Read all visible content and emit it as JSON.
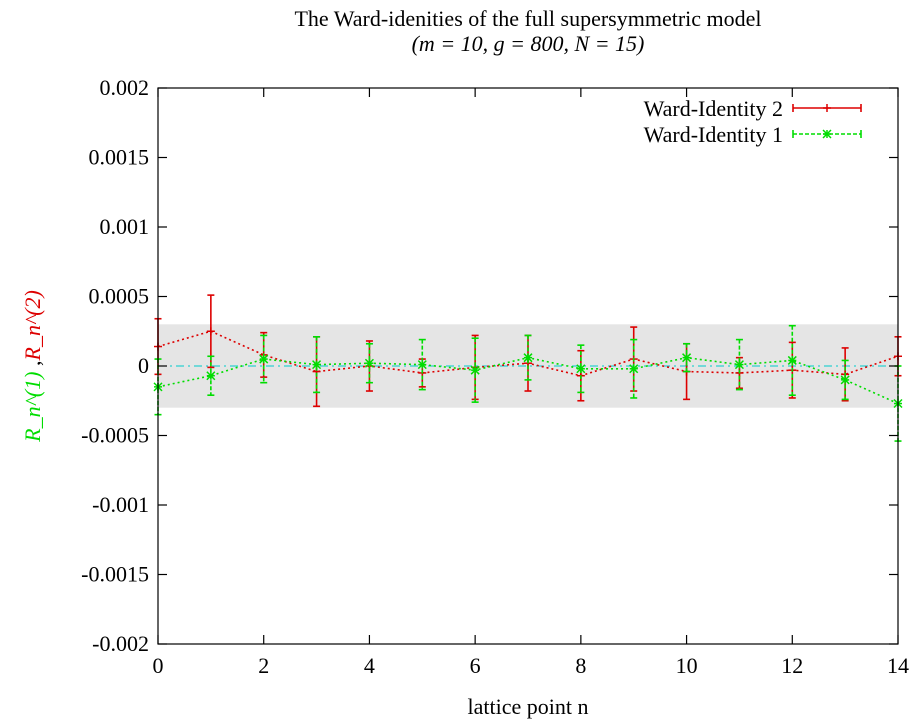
{
  "chart_data": {
    "type": "line",
    "title_line1": "The Ward-idenities of the full supersymmetric model",
    "title_line2": "(m = 10, g = 800, N = 15)",
    "xlabel": "lattice point n",
    "ylabel_part1": "R_n^(1)",
    "ylabel_sep": " ,",
    "ylabel_part2": "R_n^(2)",
    "xlim": [
      0,
      14
    ],
    "ylim": [
      -0.002,
      0.002
    ],
    "xticks": [
      0,
      2,
      4,
      6,
      8,
      10,
      12,
      14
    ],
    "xtick_labels": [
      "0",
      "2",
      "4",
      "6",
      "8",
      "10",
      "12",
      "14"
    ],
    "yticks": [
      0.002,
      0.0015,
      0.001,
      0.0005,
      0,
      -0.0005,
      -0.001,
      -0.0015,
      -0.002
    ],
    "ytick_labels": [
      "0.002",
      "0.0015",
      "0.001",
      "0.0005",
      "0",
      "-0.0005",
      "-0.001",
      "-0.0015",
      "-0.002"
    ],
    "band": {
      "ymin": -0.0003,
      "ymax": 0.0003,
      "color": "#e5e5e5"
    },
    "zero_line_color": "#00cccc",
    "legend_position": "top-right",
    "x": [
      0,
      1,
      2,
      3,
      4,
      5,
      6,
      7,
      8,
      9,
      10,
      11,
      12,
      13,
      14
    ],
    "series": [
      {
        "name": "Ward-Identity 2",
        "color": "#dd0000",
        "marker": "plus",
        "values": [
          0.00014,
          0.00025,
          8e-05,
          -4e-05,
          0.0,
          -5e-05,
          -1e-05,
          2e-05,
          -7e-05,
          5e-05,
          -4e-05,
          -5e-05,
          -3e-05,
          -6e-05,
          7e-05
        ],
        "errors": [
          0.0002,
          0.00026,
          0.00016,
          0.00025,
          0.00018,
          0.0001,
          0.00023,
          0.0002,
          0.00018,
          0.00023,
          0.0002,
          0.00011,
          0.0002,
          0.00019,
          0.00014
        ]
      },
      {
        "name": "Ward-Identity 1",
        "color": "#00dd00",
        "marker": "star",
        "values": [
          -0.00015,
          -7e-05,
          5e-05,
          1e-05,
          2e-05,
          1e-05,
          -3e-05,
          6e-05,
          -2e-05,
          -2e-05,
          6e-05,
          1e-05,
          4e-05,
          -0.0001,
          -0.00027
        ],
        "errors": [
          0.0002,
          0.00014,
          0.00017,
          0.0002,
          0.00014,
          0.00018,
          0.00023,
          0.00016,
          0.00017,
          0.00021,
          0.0001,
          0.00018,
          0.00025,
          0.00014,
          0.00027
        ]
      }
    ]
  }
}
